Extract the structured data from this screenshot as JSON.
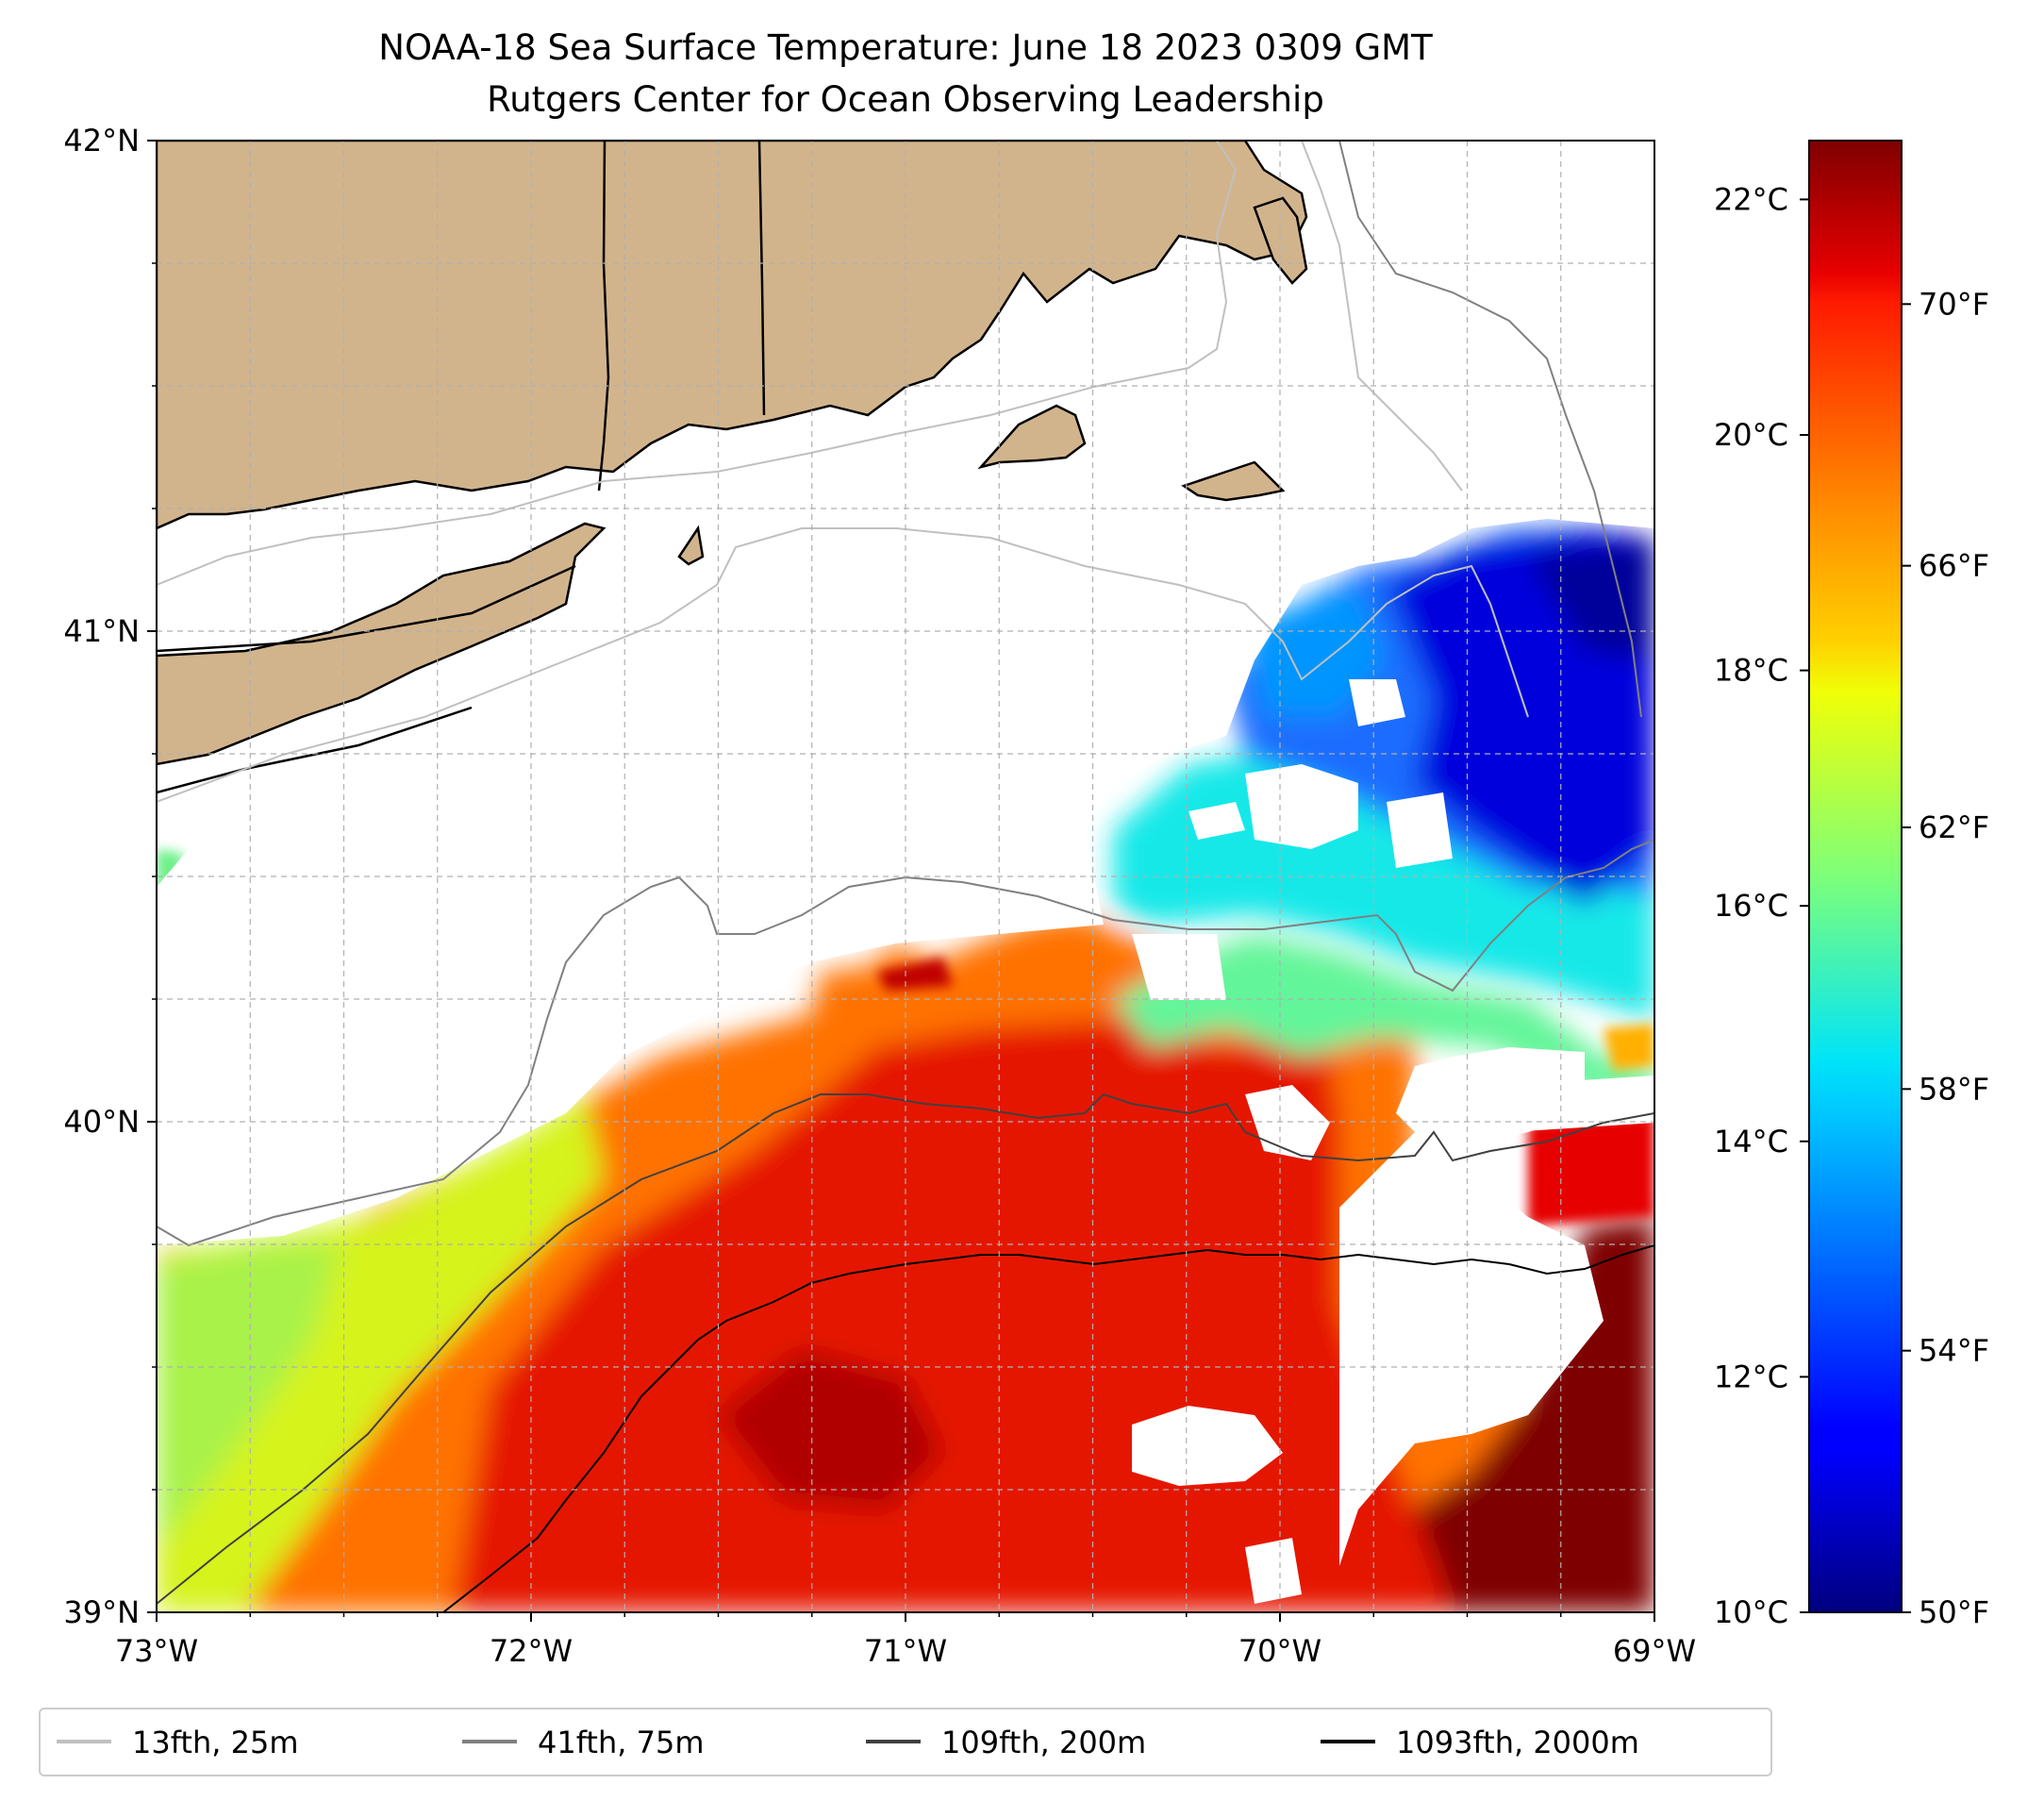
{
  "title": {
    "line1": "NOAA-18 Sea Surface Temperature: June 18 2023 0309 GMT",
    "line2": "Rutgers Center for Ocean Observing Leadership"
  },
  "map": {
    "lon_range": [
      -73,
      -69
    ],
    "lat_range": [
      39,
      42
    ],
    "land_color": "#d2b48c",
    "gridlines": true,
    "lon_ticks": [
      "73°W",
      "72°W",
      "71°W",
      "70°W",
      "69°W"
    ],
    "lat_ticks": [
      "39°N",
      "40°N",
      "41°N",
      "42°N"
    ]
  },
  "colorbar": {
    "colormap": "jet",
    "celsius_ticks": [
      "10°C",
      "12°C",
      "14°C",
      "16°C",
      "18°C",
      "20°C",
      "22°C"
    ],
    "fahrenheit_ticks": [
      "50°F",
      "54°F",
      "58°F",
      "62°F",
      "66°F",
      "70°F"
    ],
    "celsius_values": [
      10,
      12,
      14,
      16,
      18,
      20,
      22
    ],
    "fahrenheit_values": [
      50,
      54,
      58,
      62,
      66,
      70
    ],
    "range_f": [
      50,
      72.5
    ]
  },
  "legend": {
    "placement": "bottom",
    "entries": [
      {
        "label": "13fth, 25m",
        "color": "#c0c0c0"
      },
      {
        "label": "41fth, 75m",
        "color": "#808080"
      },
      {
        "label": "109fth, 200m",
        "color": "#404040"
      },
      {
        "label": "1093fth, 2000m",
        "color": "#000000"
      }
    ]
  }
}
